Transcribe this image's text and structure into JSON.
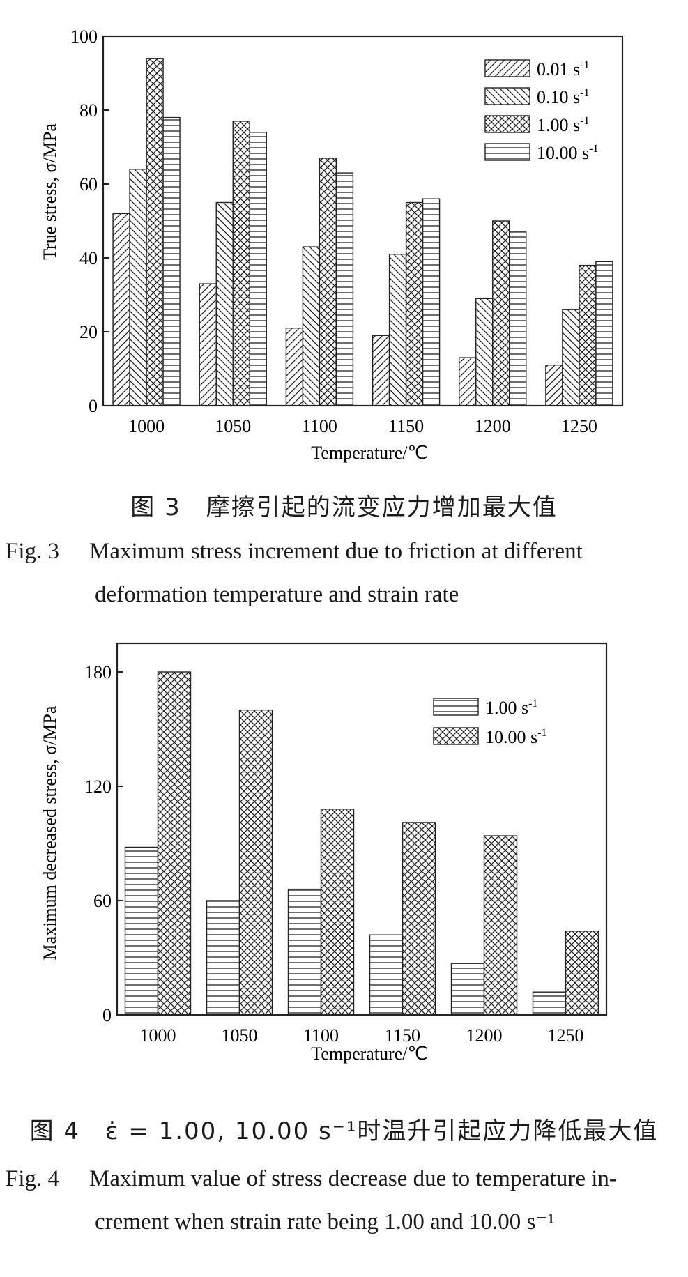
{
  "figure3": {
    "caption_cn": "图 3　摩擦引起的流变应力增加最大值",
    "caption_en_label": "Fig. 3",
    "caption_en_line1": "Maximum stress increment due to friction at different",
    "caption_en_line2": "deformation temperature and strain rate",
    "chart_data": {
      "type": "bar",
      "categories": [
        "1000",
        "1050",
        "1100",
        "1150",
        "1200",
        "1250"
      ],
      "series": [
        {
          "name": "0.01 s-1",
          "values": [
            52,
            33,
            21,
            19,
            13,
            11
          ],
          "pattern": "diag-forward"
        },
        {
          "name": "0.10 s-1",
          "values": [
            64,
            55,
            43,
            41,
            29,
            26
          ],
          "pattern": "diag-back"
        },
        {
          "name": "1.00 s-1",
          "values": [
            94,
            77,
            67,
            55,
            50,
            38
          ],
          "pattern": "crosshatch"
        },
        {
          "name": "10.00 s-1",
          "values": [
            78,
            74,
            63,
            56,
            47,
            39
          ],
          "pattern": "horizontal"
        }
      ],
      "xlabel": "Temperature/℃",
      "ylabel": "True stress, σ/MPa",
      "ylim": [
        0,
        100
      ],
      "yticks": [
        0,
        20,
        40,
        60,
        80,
        100
      ],
      "legend_position": "top-right",
      "grid": false
    }
  },
  "figure4": {
    "caption_cn": "图 4　ε̇ = 1.00, 10.00 s⁻¹时温升引起应力降低最大值",
    "caption_en_label": "Fig. 4",
    "caption_en_line1": "Maximum value of stress decrease due to temperature in-",
    "caption_en_line2": "crement when strain rate being 1.00 and 10.00 s⁻¹",
    "chart_data": {
      "type": "bar",
      "categories": [
        "1000",
        "1050",
        "1100",
        "1150",
        "1200",
        "1250"
      ],
      "series": [
        {
          "name": "1.00 s-1",
          "values": [
            88,
            60,
            66,
            42,
            27,
            12
          ],
          "pattern": "horizontal"
        },
        {
          "name": "10.00 s-1",
          "values": [
            180,
            160,
            108,
            101,
            94,
            44
          ],
          "pattern": "crosshatch"
        }
      ],
      "xlabel": "Temperature/℃",
      "ylabel": "Maximum decreased stress, σ/MPa",
      "ylim": [
        0,
        195
      ],
      "yticks": [
        0,
        60,
        120,
        180
      ],
      "legend_position": "top-right",
      "grid": false
    }
  }
}
